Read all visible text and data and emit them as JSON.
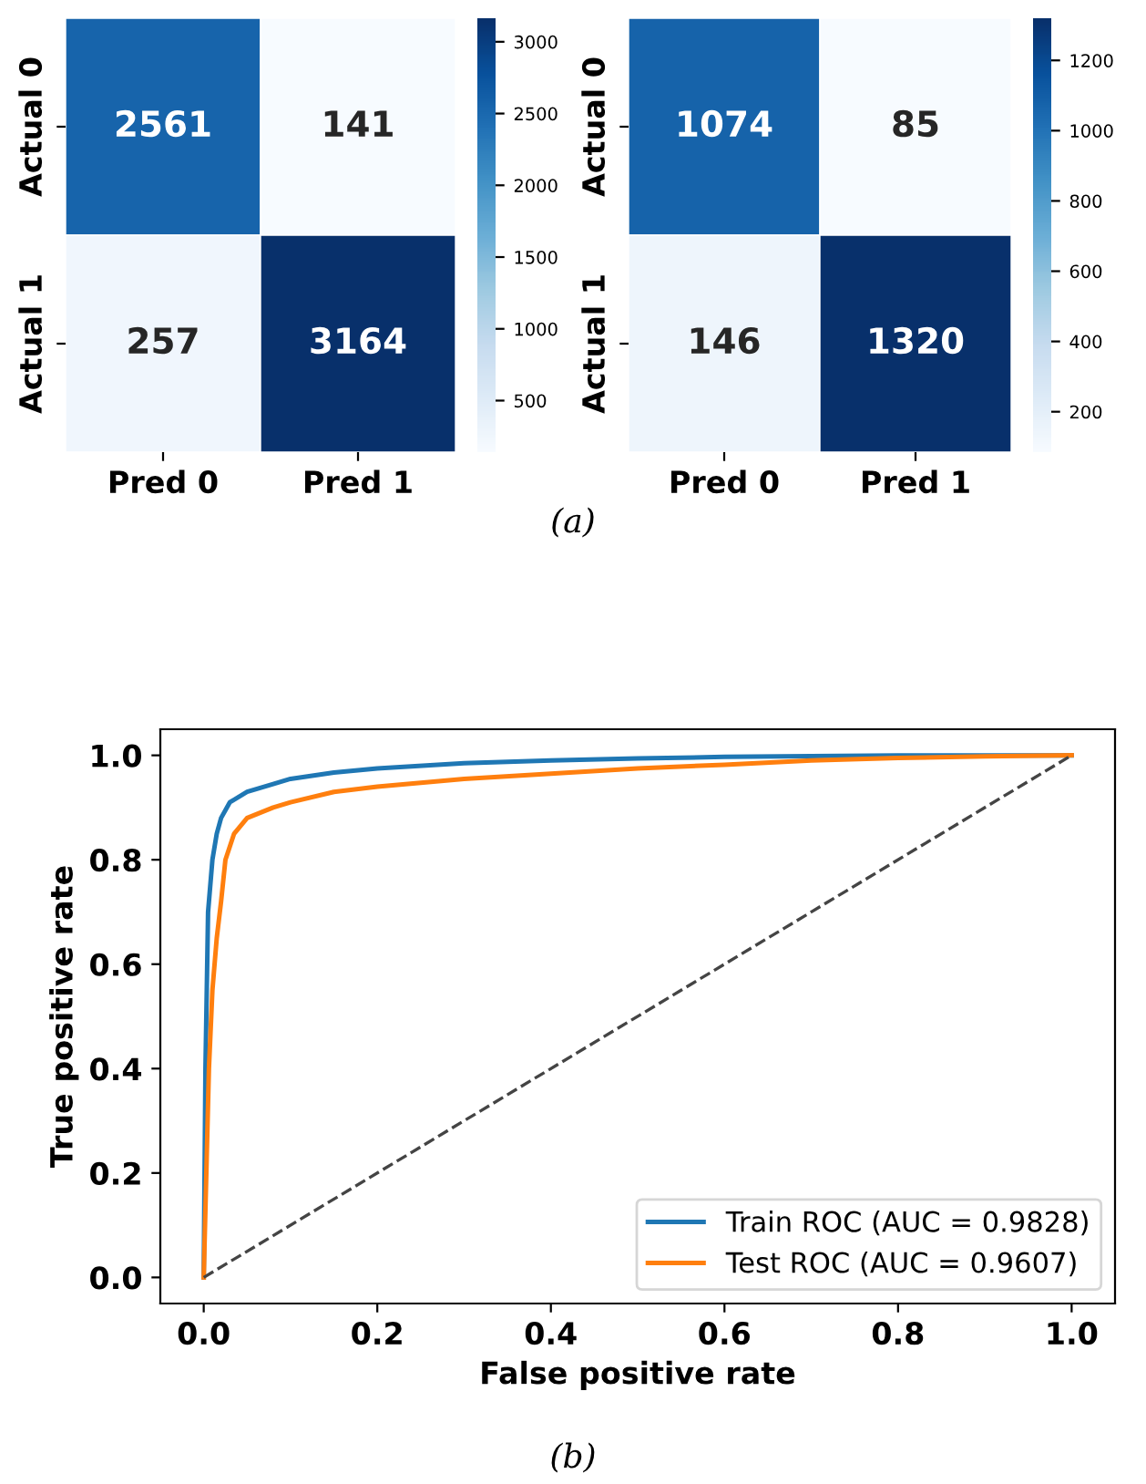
{
  "chart_data": [
    {
      "type": "heatmap",
      "categories": [
        "Pred 0",
        "Pred 1"
      ],
      "y_categories": [
        "Actual 0",
        "Actual 1"
      ],
      "cells": [
        [
          2561,
          141
        ],
        [
          257,
          3164
        ]
      ],
      "data_labels": true,
      "clim": [
        141,
        3164
      ],
      "cticks": [
        500,
        1000,
        1500,
        2000,
        2500,
        3000
      ],
      "annotations": [
        "(a)"
      ]
    },
    {
      "type": "heatmap",
      "categories": [
        "Pred 0",
        "Pred 1"
      ],
      "y_categories": [
        "Actual 0",
        "Actual 1"
      ],
      "cells": [
        [
          1074,
          85
        ],
        [
          146,
          1320
        ]
      ],
      "data_labels": true,
      "clim": [
        85,
        1320
      ],
      "cticks": [
        200,
        400,
        600,
        800,
        1000,
        1200
      ]
    },
    {
      "type": "line",
      "xlabel": "False positive rate",
      "ylabel": "True positive rate",
      "xlim": [
        -0.05,
        1.05
      ],
      "ylim": [
        -0.05,
        1.05
      ],
      "xticks": [
        {
          "value": 0,
          "label": "0.0"
        },
        0.2,
        0.4,
        0.6,
        0.8,
        {
          "value": 1,
          "label": "1.0"
        }
      ],
      "yticks": [
        {
          "value": 0,
          "label": "0.0"
        },
        0.2,
        0.4,
        0.6,
        0.8,
        {
          "value": 1,
          "label": "1.0"
        }
      ],
      "legend": "bottom right",
      "grid": false,
      "annotations": [
        "(b)"
      ],
      "series": [
        {
          "name": "Train ROC (AUC = 0.9828)",
          "color": "#1f77b4",
          "x": [
            0,
            0.002,
            0.005,
            0.01,
            0.015,
            0.02,
            0.03,
            0.05,
            0.08,
            0.1,
            0.15,
            0.2,
            0.3,
            0.4,
            0.5,
            0.6,
            0.8,
            1
          ],
          "values": [
            0,
            0.4,
            0.7,
            0.8,
            0.85,
            0.88,
            0.91,
            0.93,
            0.945,
            0.955,
            0.967,
            0.975,
            0.985,
            0.99,
            0.994,
            0.997,
            1.0,
            1.0
          ]
        },
        {
          "name": "Test ROC (AUC = 0.9607)",
          "color": "#ff7f0e",
          "x": [
            0,
            0.003,
            0.006,
            0.01,
            0.015,
            0.02,
            0.025,
            0.035,
            0.05,
            0.08,
            0.1,
            0.15,
            0.2,
            0.3,
            0.4,
            0.5,
            0.6,
            0.7,
            0.8,
            0.9,
            1
          ],
          "values": [
            0,
            0.2,
            0.4,
            0.55,
            0.65,
            0.72,
            0.8,
            0.85,
            0.88,
            0.9,
            0.91,
            0.93,
            0.94,
            0.955,
            0.965,
            0.975,
            0.982,
            0.99,
            0.995,
            0.998,
            1.0
          ]
        },
        {
          "color": "#444444",
          "line_style": "dashed",
          "x": [
            0,
            1
          ],
          "values": [
            0,
            1
          ]
        }
      ]
    }
  ]
}
